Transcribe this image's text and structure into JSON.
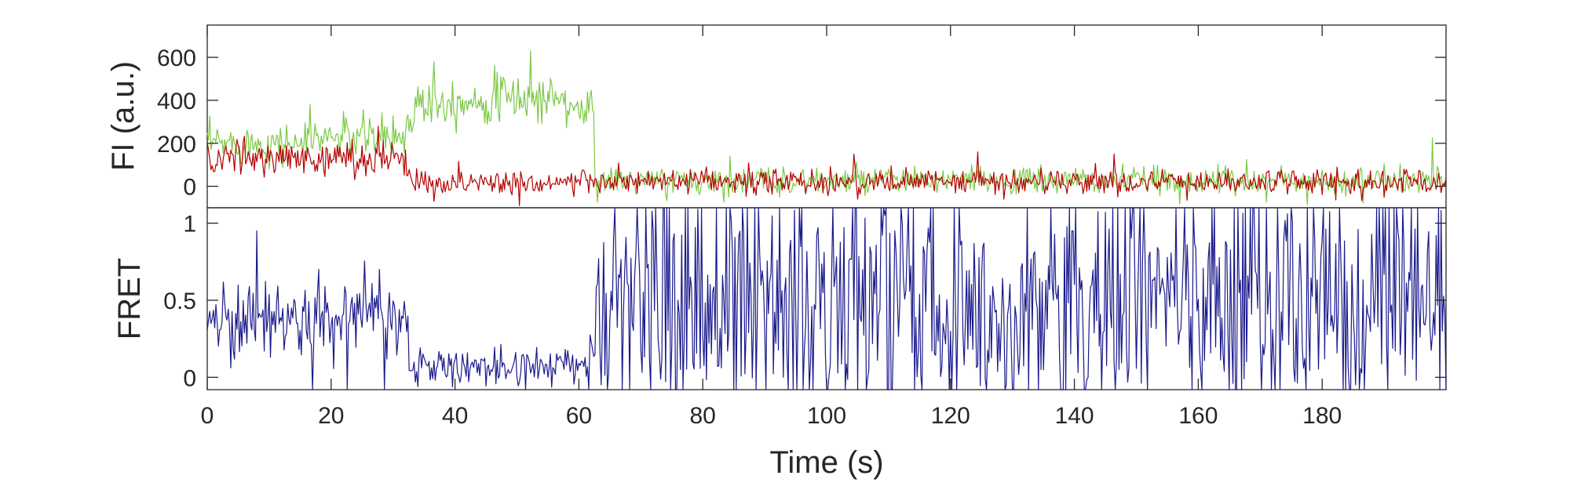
{
  "chart_data": [
    {
      "type": "line",
      "ylabel": "FI (a.u.)",
      "xlim": [
        0,
        200
      ],
      "ylim": [
        -100,
        750
      ],
      "yticks": [
        0,
        200,
        400,
        600
      ],
      "series": [
        {
          "color": "#7ac943",
          "segments": [
            {
              "x0": 0,
              "x1": 17,
              "mean": 200,
              "noise": 45
            },
            {
              "x0": 17,
              "x1": 32,
              "mean": 230,
              "noise": 50
            },
            {
              "x0": 32,
              "x1": 33.5,
              "mean": 300,
              "noise": 40
            },
            {
              "x0": 33.5,
              "x1": 45,
              "mean": 400,
              "noise": 55
            },
            {
              "x0": 45,
              "x1": 58,
              "mean": 410,
              "noise": 55
            },
            {
              "x0": 58,
              "x1": 62.5,
              "mean": 360,
              "noise": 60
            },
            {
              "x0": 62.5,
              "x1": 200,
              "mean": 25,
              "noise": 32
            }
          ],
          "spikes": [
            {
              "x": 16.5,
              "y": 380
            },
            {
              "x": 36.5,
              "y": 580
            },
            {
              "x": 52.3,
              "y": 630
            },
            {
              "x": 84.5,
              "y": 140
            },
            {
              "x": 167.8,
              "y": 125
            },
            {
              "x": 197.8,
              "y": 225
            }
          ]
        },
        {
          "color": "#b40000",
          "segments": [
            {
              "x0": 0,
              "x1": 32.5,
              "mean": 130,
              "noise": 40
            },
            {
              "x0": 32.5,
              "x1": 200,
              "mean": 20,
              "noise": 30
            }
          ],
          "spikes": [
            {
              "x": 27.5,
              "y": 280
            },
            {
              "x": 36.5,
              "y": -70
            },
            {
              "x": 50.5,
              "y": -90
            },
            {
              "x": 104.5,
              "y": 150
            },
            {
              "x": 124.5,
              "y": 160
            },
            {
              "x": 146.5,
              "y": 150
            }
          ]
        }
      ]
    },
    {
      "type": "line",
      "ylabel": "FRET",
      "xlabel": "Time (s)",
      "xlim": [
        0,
        200
      ],
      "ylim": [
        -0.08,
        1.1
      ],
      "xticks": [
        0,
        20,
        40,
        60,
        80,
        100,
        120,
        140,
        160,
        180
      ],
      "yticks": [
        0,
        0.5,
        1
      ],
      "series": [
        {
          "color": "#1a1a8c",
          "segments": [
            {
              "x0": 0,
              "x1": 32.5,
              "mean": 0.38,
              "noise": 0.12
            },
            {
              "x0": 32.5,
              "x1": 61.5,
              "mean": 0.07,
              "noise": 0.06
            },
            {
              "x0": 61.5,
              "x1": 63,
              "mean": 0.3,
              "noise": 0.3
            },
            {
              "x0": 63,
              "x1": 200,
              "mean": 0.5,
              "noise": 0.45
            }
          ],
          "spikes": [
            {
              "x": 8,
              "y": 0.95
            },
            {
              "x": 17,
              "y": -0.08
            },
            {
              "x": 22.5,
              "y": -0.08
            },
            {
              "x": 28.5,
              "y": -0.08
            },
            {
              "x": 18,
              "y": 0.7
            },
            {
              "x": 27.8,
              "y": 0.7
            }
          ]
        }
      ]
    }
  ]
}
